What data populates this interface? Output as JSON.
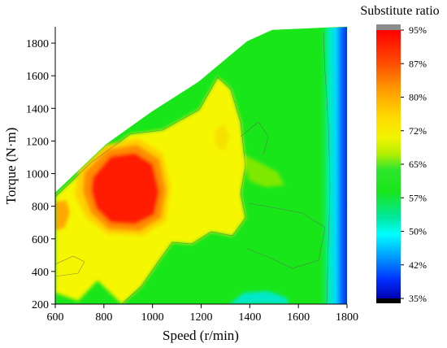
{
  "chart_data": {
    "type": "heatmap",
    "subtype": "contour",
    "xlabel": "Speed (r/min)",
    "ylabel": "Torque (N·m)",
    "x_ticks": [
      600,
      800,
      1000,
      1200,
      1400,
      1600,
      1800
    ],
    "y_ticks": [
      200,
      400,
      600,
      800,
      1000,
      1200,
      1400,
      1600,
      1800
    ],
    "xlim": [
      600,
      1800
    ],
    "ylim": [
      200,
      1900
    ],
    "colorbar": {
      "title": "Substitute ratio",
      "tick_labels": [
        "95%",
        "87%",
        "80%",
        "72%",
        "65%",
        "57%",
        "50%",
        "42%",
        "35%"
      ],
      "tick_values": [
        95,
        87,
        80,
        72,
        65,
        57,
        50,
        42,
        35
      ],
      "range": [
        35,
        95
      ]
    },
    "colors": {
      "red": "#ff1a00",
      "orange": "#ff9900",
      "yellow": "#ffef00",
      "green": "#19e619",
      "cyan": "#00ffff",
      "blue": "#0040ff",
      "navy": "#000088"
    },
    "envelope": {
      "x": [
        600,
        800,
        1000,
        1200,
        1400,
        1500,
        1600,
        1700,
        1800
      ],
      "max_torque": [
        870,
        1160,
        1370,
        1570,
        1820,
        1880,
        1890,
        1900,
        1900
      ]
    },
    "regions": [
      {
        "label": "95%",
        "value": 95,
        "approx_speed_range": [
          760,
          1020
        ],
        "approx_torque_range": [
          700,
          1050
        ]
      },
      {
        "label": "87%",
        "value": 87,
        "approx_speed_range": [
          720,
          1080
        ],
        "approx_torque_range": [
          650,
          1150
        ]
      },
      {
        "label": "80%",
        "value": 80,
        "approx_speed_range": [
          600,
          1300
        ],
        "approx_torque_range": [
          300,
          1350
        ]
      },
      {
        "label": "72%",
        "value": 72,
        "approx_speed_range": [
          600,
          1700
        ],
        "approx_torque_range": [
          200,
          1900
        ]
      },
      {
        "label": "57%",
        "value": 57,
        "approx_speed_range": [
          1700,
          1780
        ],
        "approx_torque_range": [
          200,
          1900
        ]
      },
      {
        "label": "42%",
        "value": 42,
        "approx_speed_range": [
          1770,
          1800
        ],
        "approx_torque_range": [
          1400,
          1900
        ]
      }
    ]
  }
}
